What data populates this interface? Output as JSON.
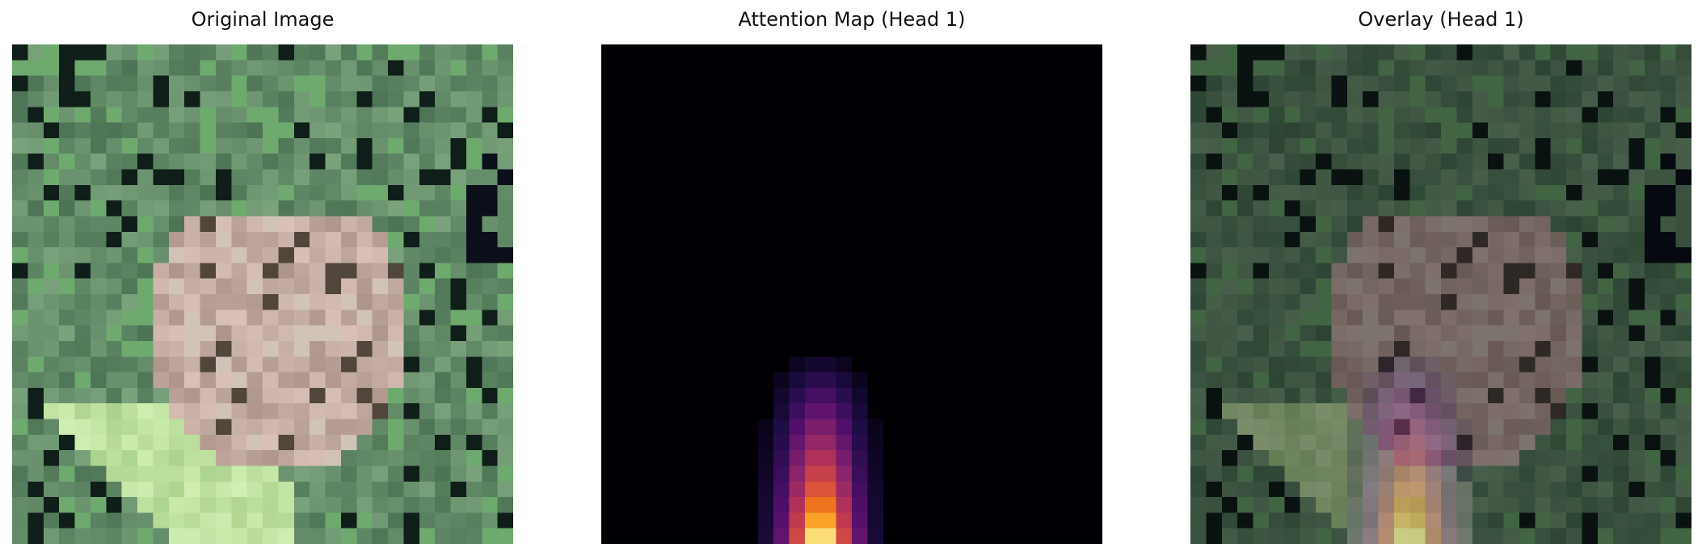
{
  "panels": [
    {
      "title": "Original Image"
    },
    {
      "title": "Attention Map (Head 1)"
    },
    {
      "title": "Overlay (Head 1)"
    }
  ],
  "colors": {
    "background": "#ffffff",
    "attention_background": "#000004"
  },
  "image_grid": {
    "cols": 32,
    "rows": 32
  }
}
